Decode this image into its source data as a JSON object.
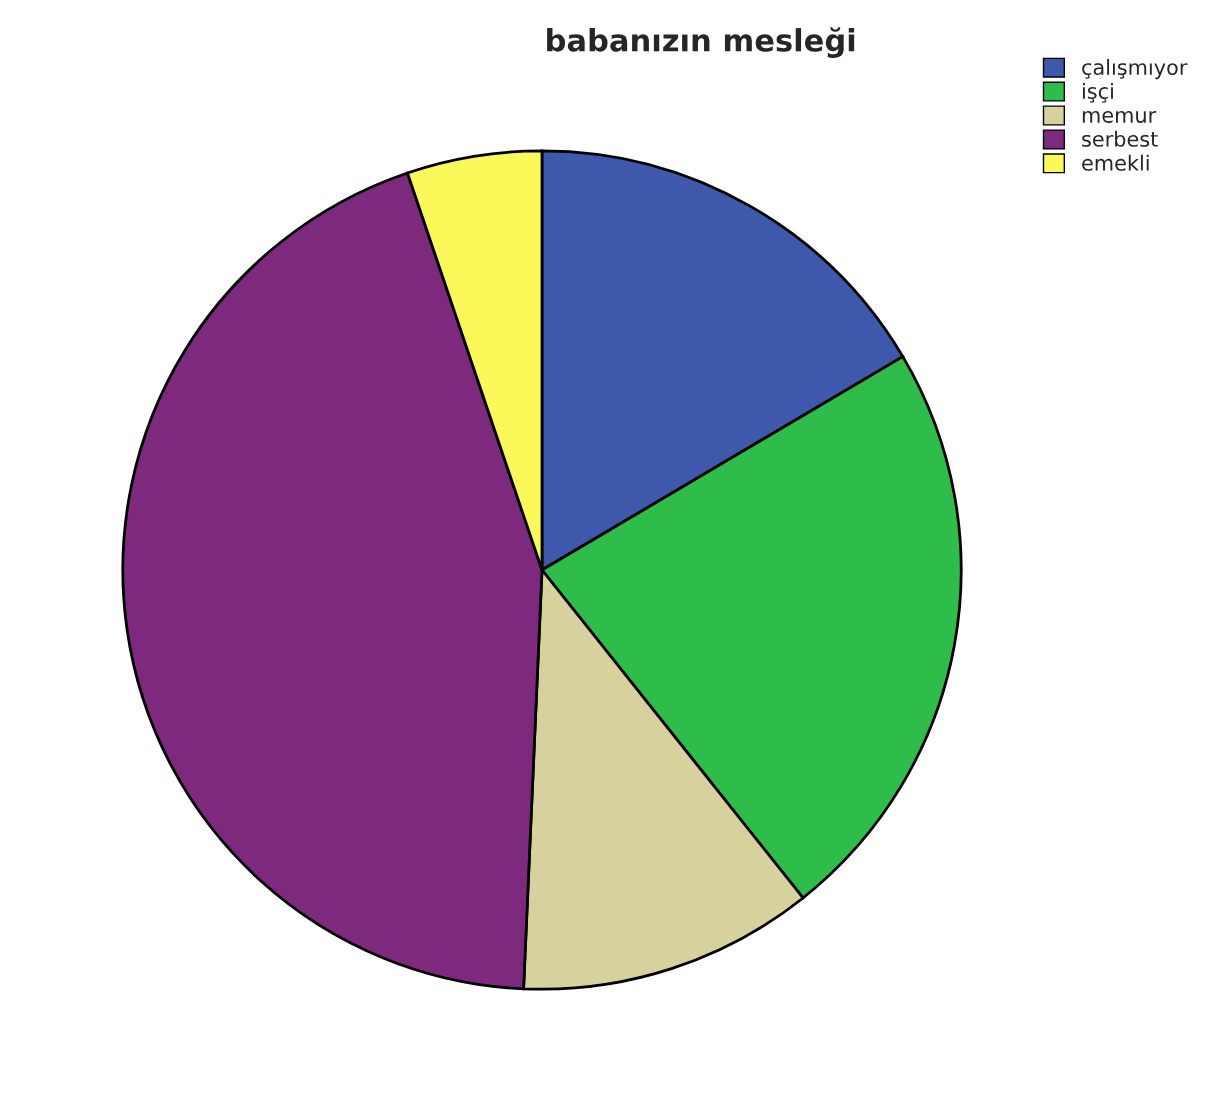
{
  "chart_data": {
    "type": "pie",
    "title": "babanızın mesleği",
    "categories": [
      "çalışmıyor",
      "işçi",
      "memur",
      "serbest",
      "emekli"
    ],
    "values": [
      16.5,
      22.8,
      11.4,
      44.1,
      5.2
    ],
    "colors": [
      "#3e58ac",
      "#2ebd4a",
      "#d7d29d",
      "#7d2a7e",
      "#fbf85a"
    ],
    "legend": "top right"
  }
}
